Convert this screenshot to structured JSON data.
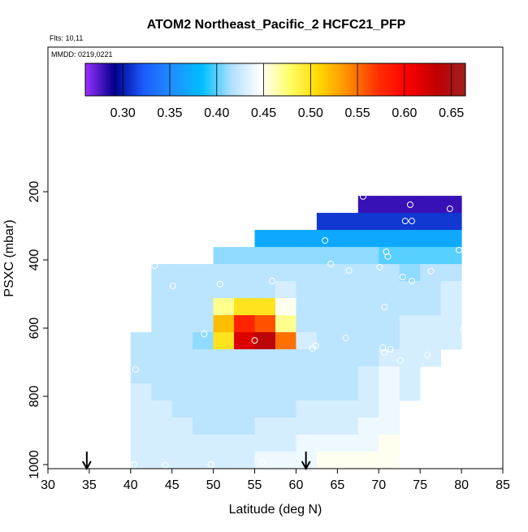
{
  "chart_data": {
    "type": "heatmap",
    "title": "ATOM2 Northeast_Pacific_2 HCFC21_PFP",
    "subtitle": "Flts: 10,11",
    "annotation": "MMDD: 0219,0221",
    "x_label": "Latitude (deg N)",
    "y_label": "PSXC (mbar)",
    "xlim": [
      30,
      85
    ],
    "xticks": [
      30,
      35,
      40,
      45,
      50,
      55,
      60,
      65,
      70,
      75,
      80,
      85
    ],
    "ylim": [
      1012,
      -224
    ],
    "yticks": [
      200,
      400,
      600,
      800,
      1000
    ],
    "x_edges": [
      40,
      42.5,
      45,
      47.5,
      50,
      52.5,
      55,
      57.5,
      60,
      62.5,
      65,
      67.5,
      70,
      72.5,
      75,
      77.5,
      80
    ],
    "y_edges": [
      212,
      262,
      312,
      362,
      412,
      462,
      512,
      562,
      612,
      662,
      712,
      762,
      812,
      862,
      912,
      962,
      1012
    ],
    "z": [
      [
        null,
        null,
        null,
        null,
        null,
        null,
        null,
        null,
        null,
        null,
        null,
        0.28,
        0.28,
        0.28,
        0.28,
        0.28
      ],
      [
        null,
        null,
        null,
        null,
        null,
        null,
        null,
        null,
        null,
        0.31,
        0.31,
        0.31,
        0.31,
        0.31,
        0.31,
        0.31
      ],
      [
        null,
        null,
        null,
        null,
        null,
        null,
        0.37,
        0.37,
        0.37,
        0.37,
        0.37,
        0.37,
        0.37,
        0.37,
        0.37,
        0.37
      ],
      [
        null,
        null,
        null,
        null,
        0.41,
        0.41,
        0.41,
        0.41,
        0.41,
        0.41,
        0.41,
        0.41,
        0.4,
        0.4,
        0.4,
        0.4
      ],
      [
        null,
        0.42,
        0.42,
        0.42,
        0.42,
        0.42,
        0.42,
        0.42,
        0.42,
        0.42,
        0.42,
        0.42,
        0.42,
        0.41,
        0.42,
        0.42
      ],
      [
        null,
        0.42,
        0.42,
        0.42,
        0.42,
        0.42,
        0.42,
        0.43,
        0.42,
        0.42,
        0.42,
        0.42,
        0.42,
        0.42,
        0.42,
        0.43
      ],
      [
        null,
        0.42,
        0.42,
        0.42,
        0.47,
        0.5,
        0.5,
        0.45,
        0.42,
        0.42,
        0.42,
        0.42,
        0.42,
        0.42,
        0.42,
        0.43
      ],
      [
        null,
        0.42,
        0.42,
        0.42,
        0.52,
        0.58,
        0.56,
        0.47,
        0.42,
        0.42,
        0.42,
        0.42,
        0.42,
        0.43,
        0.43,
        0.43
      ],
      [
        0.42,
        0.42,
        0.42,
        0.41,
        0.5,
        0.62,
        0.64,
        0.55,
        0.43,
        0.42,
        0.42,
        0.42,
        0.42,
        0.43,
        0.43,
        0.43
      ],
      [
        0.42,
        0.42,
        0.42,
        0.42,
        0.42,
        0.42,
        0.42,
        0.42,
        0.42,
        0.42,
        0.42,
        0.42,
        0.43,
        0.43,
        0.43,
        null
      ],
      [
        0.42,
        0.42,
        0.42,
        0.42,
        0.42,
        0.42,
        0.42,
        0.42,
        0.42,
        0.42,
        0.42,
        0.43,
        0.44,
        0.43,
        null,
        null
      ],
      [
        0.43,
        0.42,
        0.42,
        0.42,
        0.42,
        0.42,
        0.42,
        0.42,
        0.42,
        0.42,
        0.42,
        0.43,
        0.44,
        0.43,
        null,
        null
      ],
      [
        0.43,
        0.43,
        0.42,
        0.42,
        0.42,
        0.42,
        0.42,
        0.42,
        0.43,
        0.43,
        0.43,
        0.43,
        0.44,
        null,
        null,
        null
      ],
      [
        0.43,
        0.43,
        0.43,
        0.42,
        0.42,
        0.42,
        0.43,
        0.43,
        0.43,
        0.43,
        0.43,
        0.44,
        0.44,
        null,
        null,
        null
      ],
      [
        0.43,
        0.43,
        0.43,
        0.43,
        0.43,
        0.43,
        0.43,
        0.43,
        0.44,
        0.44,
        0.44,
        0.44,
        0.45,
        null,
        null,
        null
      ],
      [
        0.43,
        0.43,
        0.43,
        0.43,
        0.43,
        0.43,
        0.44,
        0.44,
        0.44,
        0.45,
        0.45,
        0.45,
        0.45,
        null,
        null,
        null
      ]
    ],
    "points": {
      "x": [
        68.1,
        73.8,
        78.6,
        73.2,
        74.0,
        63.5,
        70.9,
        71.1,
        79.7,
        64.2,
        66.4,
        70.1,
        76.3,
        72.9,
        74.0,
        42.9,
        45.1,
        50.8,
        57.1,
        70.7,
        48.9,
        55.0,
        62.0,
        62.4,
        66.0,
        80.2,
        70.5,
        70.7,
        71.4,
        72.6,
        75.9,
        40.6,
        71.9,
        70.3,
        40.4,
        44.2,
        49.7,
        55.9
      ],
      "y": [
        214,
        238,
        250,
        286,
        286,
        343,
        376,
        390,
        371,
        412,
        431,
        421,
        433,
        450,
        462,
        417,
        476,
        471,
        462,
        538,
        617,
        636,
        660,
        652,
        629,
        605,
        657,
        671,
        662,
        695,
        679,
        721,
        981,
        995,
        1000,
        1002,
        1000,
        993
      ]
    },
    "arrows_x": [
      34.7,
      61.2
    ],
    "colorbar": {
      "lim": [
        0.26,
        0.665
      ],
      "ticks": [
        {
          "value": 0.3,
          "label": "0.30"
        },
        {
          "value": 0.35,
          "label": "0.35"
        },
        {
          "value": 0.4,
          "label": "0.40"
        },
        {
          "value": 0.45,
          "label": "0.45"
        },
        {
          "value": 0.5,
          "label": "0.50"
        },
        {
          "value": 0.55,
          "label": "0.55"
        },
        {
          "value": 0.6,
          "label": "0.60"
        },
        {
          "value": 0.65,
          "label": "0.65"
        }
      ],
      "colors": [
        "#9b30ff",
        "#00008b",
        "#1c5cff",
        "#1e90ff",
        "#00bfff",
        "#b0e0ff",
        "#ffffff",
        "#ffff66",
        "#ffd700",
        "#ff8c00",
        "#ff3000",
        "#ff0000",
        "#c00000",
        "#a02020"
      ]
    }
  }
}
